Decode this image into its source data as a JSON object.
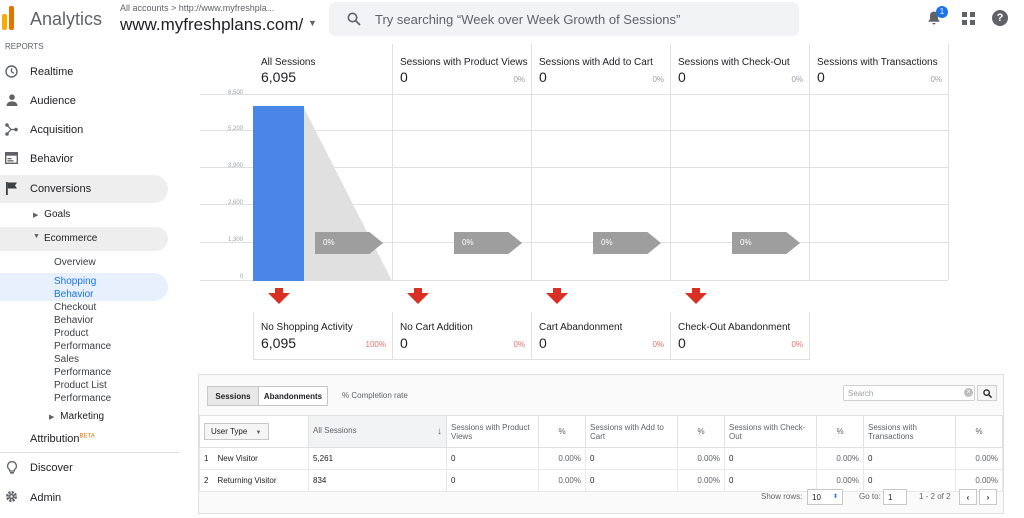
{
  "header": {
    "app_title": "Analytics",
    "account_path": "All accounts > http://www.myfreshpla...",
    "property": "www.myfreshplans.com/",
    "search_placeholder": "Try searching “Week over Week Growth of Sessions”",
    "notification_count": "1",
    "brand_colors": {
      "orange_dark": "#e37400",
      "orange": "#f9ab00"
    }
  },
  "sidebar": {
    "section_label": "REPORTS",
    "items": [
      {
        "label": "Realtime",
        "icon": "clock-icon"
      },
      {
        "label": "Audience",
        "icon": "person-icon"
      },
      {
        "label": "Acquisition",
        "icon": "acquisition-icon"
      },
      {
        "label": "Behavior",
        "icon": "behavior-icon"
      },
      {
        "label": "Conversions",
        "icon": "flag-icon"
      }
    ],
    "conversions_sub": {
      "goals": "Goals",
      "ecommerce": "Ecommerce"
    },
    "ecommerce_leaves": [
      {
        "label": "Overview"
      },
      {
        "label": "Shopping Behavior"
      },
      {
        "label": "Checkout Behavior"
      },
      {
        "label": "Product Performance"
      },
      {
        "label": "Sales Performance"
      },
      {
        "label": "Product List Performance"
      }
    ],
    "marketing": "Marketing",
    "attribution": "Attribution",
    "attribution_badge": "BETA",
    "discover": "Discover",
    "admin": "Admin"
  },
  "funnel": {
    "y_ticks": [
      "6,500",
      "5,200",
      "3,900",
      "2,600",
      "1,300",
      "0"
    ],
    "stages": [
      {
        "title": "All Sessions",
        "value": "6,095",
        "pct": ""
      },
      {
        "title": "Sessions with Product Views",
        "value": "0",
        "pct": "0%"
      },
      {
        "title": "Sessions with Add to Cart",
        "value": "0",
        "pct": "0%"
      },
      {
        "title": "Sessions with Check-Out",
        "value": "0",
        "pct": "0%"
      },
      {
        "title": "Sessions with Transactions",
        "value": "0",
        "pct": "0%"
      }
    ],
    "flows": [
      "0%",
      "0%",
      "0%",
      "0%"
    ],
    "abandonments": [
      {
        "title": "No Shopping Activity",
        "value": "6,095",
        "pct": "100%"
      },
      {
        "title": "No Cart Addition",
        "value": "0",
        "pct": "0%"
      },
      {
        "title": "Cart Abandonment",
        "value": "0",
        "pct": "0%"
      },
      {
        "title": "Check-Out Abandonment",
        "value": "0",
        "pct": "0%"
      }
    ],
    "bar_fraction": 0.9377,
    "bar_color": "#4a86e8",
    "arrow_color": "#d93025"
  },
  "table": {
    "tabs": {
      "sessions": "Sessions",
      "abandonments": "Abandonments",
      "completion": "% Completion rate"
    },
    "search_placeholder": "Search",
    "dimension_label": "User Type",
    "columns": [
      "All Sessions",
      "Sessions with Product Views",
      "%",
      "Sessions with Add to Cart",
      "%",
      "Sessions with Check-Out",
      "%",
      "Sessions with Transactions",
      "%"
    ],
    "rows": [
      {
        "idx": "1",
        "label": "New Visitor",
        "cells": [
          "5,261",
          "0",
          "0.00%",
          "0",
          "0.00%",
          "0",
          "0.00%",
          "0",
          "0.00%"
        ]
      },
      {
        "idx": "2",
        "label": "Returning Visitor",
        "cells": [
          "834",
          "0",
          "0.00%",
          "0",
          "0.00%",
          "0",
          "0.00%",
          "0",
          "0.00%"
        ]
      }
    ],
    "show_rows_label": "Show rows:",
    "show_rows_value": "10",
    "goto_label": "Go to:",
    "goto_value": "1",
    "range": "1 - 2 of 2"
  }
}
